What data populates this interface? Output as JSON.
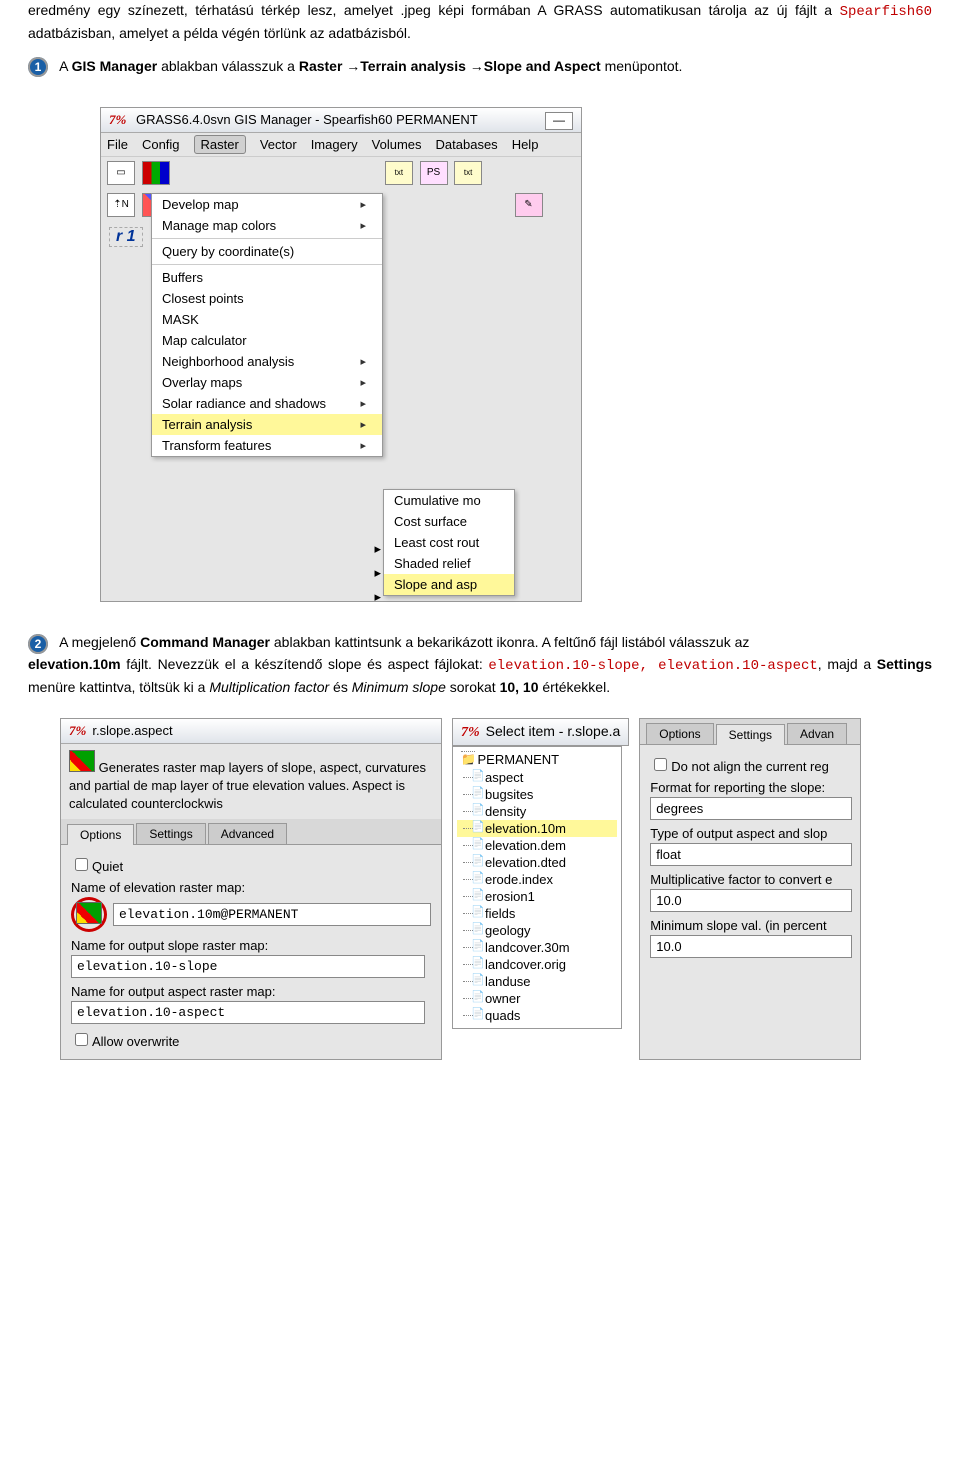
{
  "intro": {
    "p1_a": "eredmény egy színezett, térhatású térkép lesz, amelyet ",
    "p1_b": ".jpeg képi formában  A GRASS automatikusan tárolja az új fájlt a ",
    "p1_code": "Spearfish60",
    "p1_c": " adatbázisban, amelyet a példa végén törlünk az adatbázisból."
  },
  "step1": {
    "num": "1",
    "a": "A ",
    "b": "GIS Manager",
    "c": " ablakban válasszuk a ",
    "d": "Raster ",
    "arrow": "→",
    "e": "Terrain analysis ",
    "f": "Slope and Aspect",
    "g": " menüpontot."
  },
  "gismgr": {
    "title": "GRASS6.4.0svn GIS Manager - Spearfish60 PERMANENT",
    "menu": [
      "File",
      "Config",
      "Raster",
      "Vector",
      "Imagery",
      "Volumes",
      "Databases",
      "Help"
    ],
    "open_idx": 2,
    "layer_label": "r 1",
    "dropdown": [
      {
        "l": "Develop map",
        "sub": true
      },
      {
        "l": "Manage map colors",
        "sub": true
      },
      {
        "sep": true
      },
      {
        "l": "Query by coordinate(s)"
      },
      {
        "sep": true
      },
      {
        "l": "Buffers"
      },
      {
        "l": "Closest points"
      },
      {
        "l": "MASK"
      },
      {
        "l": "Map calculator"
      },
      {
        "l": "Neighborhood analysis",
        "sub": true
      },
      {
        "l": "Overlay maps",
        "sub": true
      },
      {
        "l": "Solar radiance and shadows",
        "sub": true
      },
      {
        "l": "Terrain analysis",
        "sub": true,
        "hl": true
      },
      {
        "l": "Transform features",
        "sub": true
      }
    ],
    "submenu": [
      "Cumulative mo",
      "Cost surface",
      "Least cost rout",
      "---",
      "Shaded relief",
      "---",
      "Slope and asp"
    ],
    "submenu_hl_idx": 6
  },
  "step2": {
    "num": "2",
    "a": "A megjelenő ",
    "b": "Command Manager",
    "c": " ablakban kattintsunk a bekarikázott ikonra. A feltűnő fájl listából válasszuk az ",
    "d": "elevation.10m",
    "e": " fájlt. Nevezzük el a készítendő slope és aspect fájlokat: ",
    "code1": "elevation.10-slope",
    "comma": ", ",
    "code2": "elevation.10-aspect",
    "f": ", majd a ",
    "g": "Settings",
    "h": " menüre kattintva, töltsük ki a ",
    "i": "Multiplication factor",
    "j": " és ",
    "k": "Minimum slope",
    "l": " sorokat ",
    "m": "10, 10",
    "n": " értékekkel."
  },
  "dlg1": {
    "title": "r.slope.aspect",
    "desc": "Generates raster map layers of slope, aspect, curvatures and partial de map layer of true elevation values. Aspect is calculated counterclockwis",
    "tabs": [
      "Options",
      "Settings",
      "Advanced"
    ],
    "active_tab": 0,
    "quiet": "Quiet",
    "l1": "Name of elevation raster map:",
    "v1": "elevation.10m@PERMANENT",
    "l2": "Name for output slope raster map:",
    "v2": "elevation.10-slope",
    "l3": "Name for output aspect raster map:",
    "v3": "elevation.10-aspect",
    "allow": "Allow overwrite"
  },
  "tree": {
    "title": "Select item - r.slope.a",
    "root": "PERMANENT",
    "items": [
      "aspect",
      "bugsites",
      "density",
      "elevation.10m",
      "elevation.dem",
      "elevation.dted",
      "erode.index",
      "erosion1",
      "fields",
      "geology",
      "landcover.30m",
      "landcover.orig",
      "landuse",
      "owner",
      "quads"
    ],
    "hl_idx": 3
  },
  "dlg3": {
    "tabs": [
      "Options",
      "Settings",
      "Advan"
    ],
    "active_tab": 1,
    "l1": "Do not align the current reg",
    "l2": "Format for reporting the slope:",
    "v2": "degrees",
    "l3": "Type of output aspect and slop",
    "v3": "float",
    "l4": "Multiplicative factor to convert e",
    "v4": "10.0",
    "l5": "Minimum slope val. (in percent",
    "v5": "10.0"
  }
}
